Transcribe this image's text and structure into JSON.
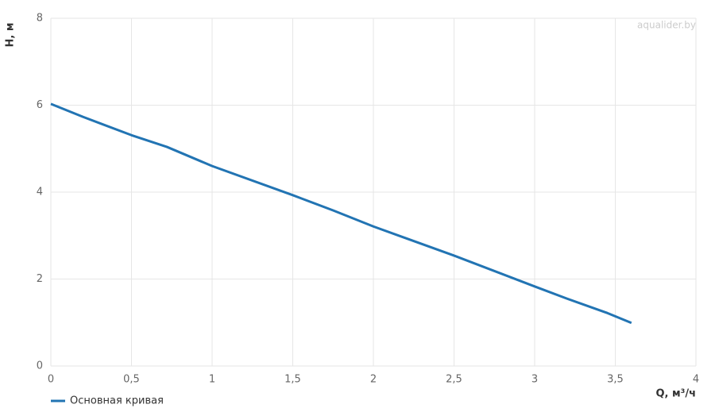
{
  "chart_data": {
    "type": "line",
    "x_label": "Q, м³/ч",
    "y_label": "H, м",
    "watermark": "aqualider.by",
    "x": [
      0,
      0.2,
      0.5,
      0.72,
      1,
      1.5,
      1.75,
      2,
      2.5,
      3,
      3.2,
      3.45,
      3.6
    ],
    "series": [
      {
        "name": "Основная кривая",
        "color": "#2274b3",
        "values": [
          6.03,
          5.73,
          5.31,
          5.04,
          4.6,
          3.93,
          3.58,
          3.21,
          2.54,
          1.83,
          1.55,
          1.22,
          0.99
        ]
      }
    ],
    "xlim": [
      0,
      4
    ],
    "xticks": [
      0,
      {
        "value": 0.5,
        "label": "0,5"
      },
      1,
      {
        "value": 1.5,
        "label": "1,5"
      },
      2,
      {
        "value": 2.5,
        "label": "2,5"
      },
      3,
      {
        "value": 3.5,
        "label": "3,5"
      },
      4
    ],
    "ylim": [
      0,
      8
    ],
    "yticks": [
      0,
      2,
      4,
      6,
      8
    ],
    "grid": true,
    "legend": "bottom-left"
  }
}
